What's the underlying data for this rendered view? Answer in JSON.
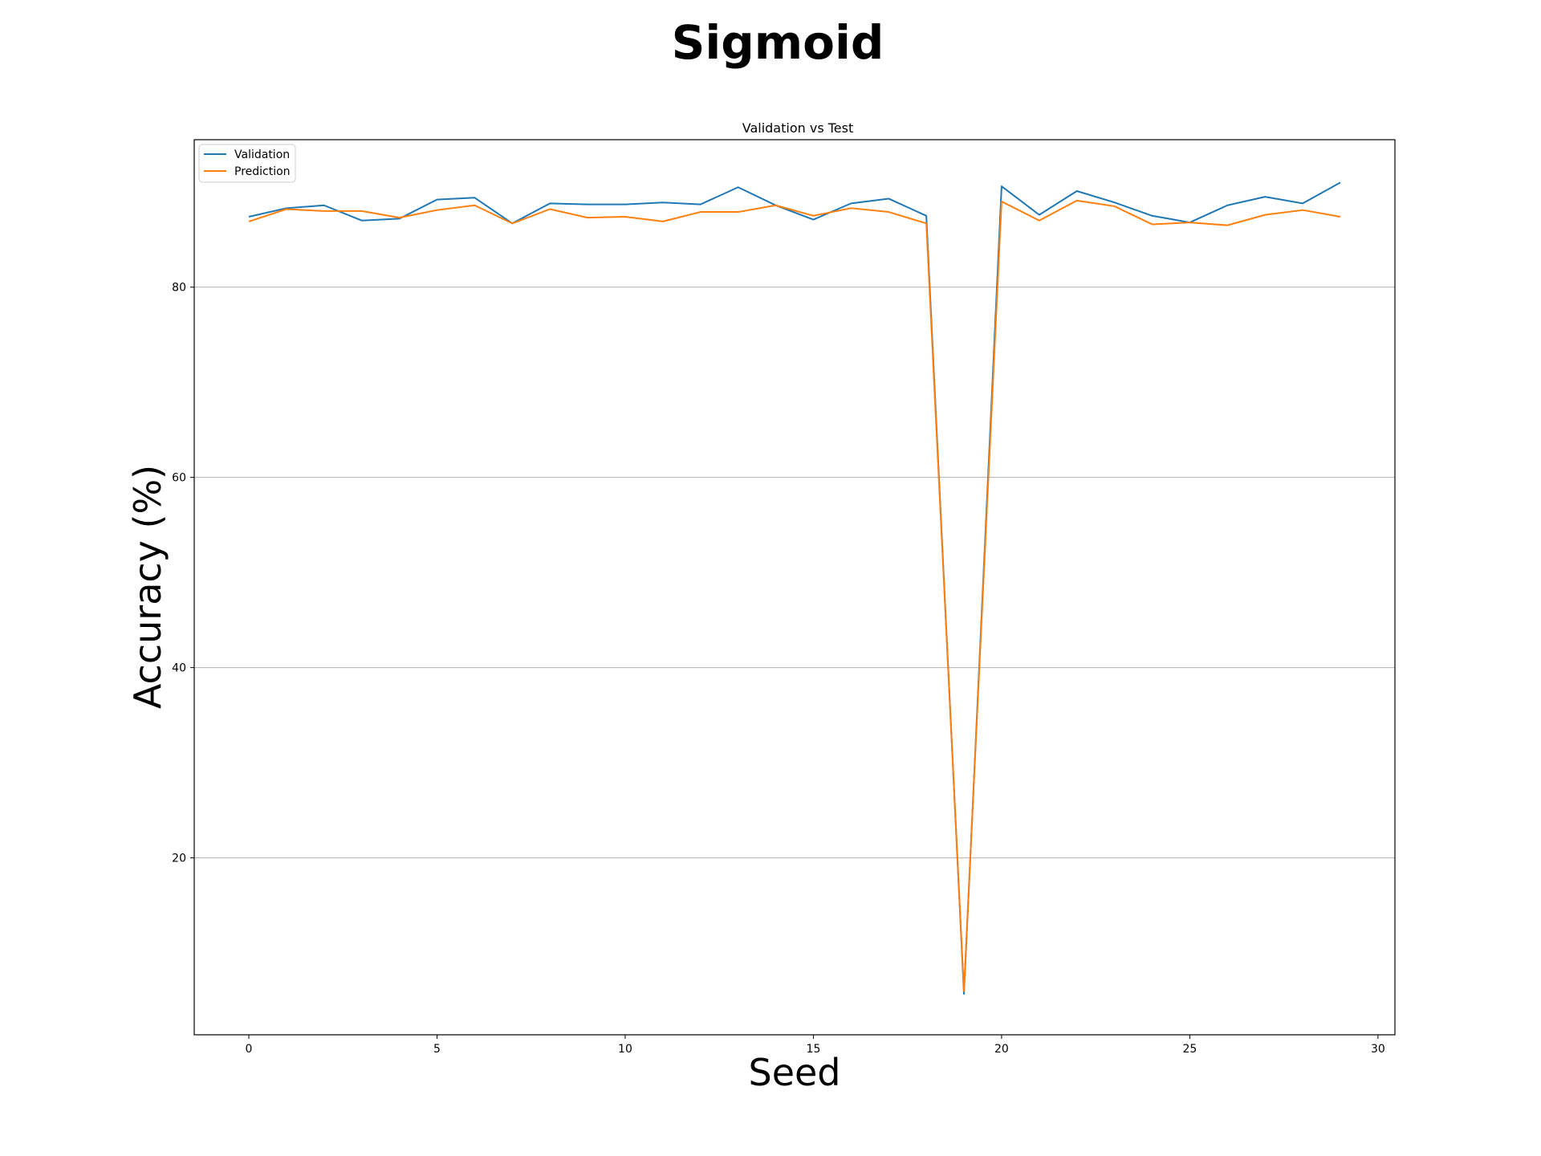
{
  "figure": {
    "suptitle": "Sigmoid"
  },
  "chart_data": {
    "type": "line",
    "title": "Validation vs Test",
    "xlabel": "Seed",
    "ylabel": "Accuracy (%)",
    "xlim": [
      -1.45,
      30.45
    ],
    "ylim": [
      1.4,
      95.5
    ],
    "xticks": [
      0,
      5,
      10,
      15,
      20,
      25,
      30
    ],
    "yticks": [
      20,
      40,
      60,
      80
    ],
    "grid": "y",
    "legend_position": "upper left",
    "x": [
      0,
      1,
      2,
      3,
      4,
      5,
      6,
      7,
      8,
      9,
      10,
      11,
      12,
      13,
      14,
      15,
      16,
      17,
      18,
      19,
      20,
      21,
      22,
      23,
      24,
      25,
      26,
      27,
      28,
      29
    ],
    "series": [
      {
        "name": "Validation",
        "color": "#1f77b4",
        "values": [
          87.4,
          88.3,
          88.6,
          87.0,
          87.2,
          89.2,
          89.4,
          86.7,
          88.8,
          88.7,
          88.7,
          88.9,
          88.7,
          90.5,
          88.6,
          87.1,
          88.8,
          89.3,
          87.5,
          5.7,
          90.6,
          87.6,
          90.1,
          88.9,
          87.5,
          86.8,
          88.6,
          89.5,
          88.8,
          91.0
        ]
      },
      {
        "name": "Prediction",
        "color": "#ff7f0e",
        "values": [
          86.9,
          88.2,
          88.0,
          88.0,
          87.3,
          88.1,
          88.6,
          86.7,
          88.2,
          87.3,
          87.4,
          86.9,
          87.9,
          87.9,
          88.6,
          87.5,
          88.3,
          87.9,
          86.7,
          6.0,
          89.0,
          87.0,
          89.1,
          88.5,
          86.6,
          86.8,
          86.5,
          87.6,
          88.1,
          87.4
        ]
      }
    ]
  }
}
